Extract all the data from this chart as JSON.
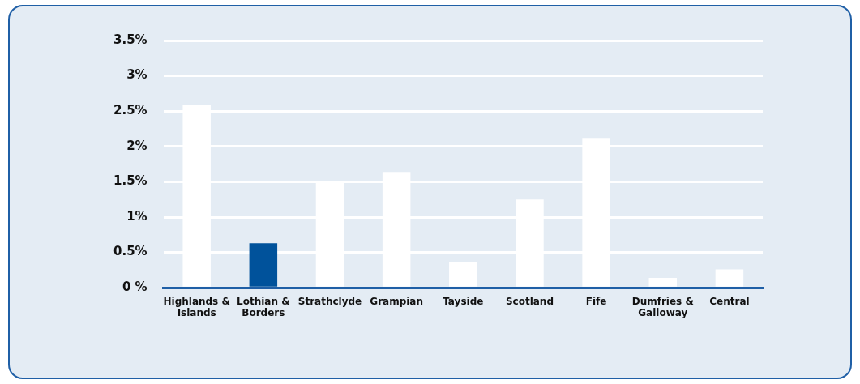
{
  "chart_data": {
    "type": "bar",
    "categories": [
      "Highlands & Islands",
      "Lothian & Borders",
      "Strathclyde",
      "Grampian",
      "Tayside",
      "Scotland",
      "Fife",
      "Dumfries & Galloway",
      "Central"
    ],
    "values": [
      2.59,
      0.63,
      1.5,
      1.64,
      0.37,
      1.25,
      2.12,
      0.14,
      0.26
    ],
    "colors": [
      "#ffffff",
      "#00529b",
      "#ffffff",
      "#ffffff",
      "#ffffff",
      "#ffffff",
      "#ffffff",
      "#ffffff",
      "#ffffff"
    ],
    "ylim": [
      0,
      3.5
    ],
    "yticks": [
      {
        "value": 0,
        "label": "0 %"
      },
      {
        "value": 0.5,
        "label": "0.5%"
      },
      {
        "value": 1,
        "label": "1%"
      },
      {
        "value": 1.5,
        "label": "1.5%"
      },
      {
        "value": 2,
        "label": "2%"
      },
      {
        "value": 2.5,
        "label": "2.5%"
      },
      {
        "value": 3,
        "label": "3%"
      },
      {
        "value": 3.5,
        "label": "3.5%"
      }
    ],
    "grid": "y",
    "legend": false
  }
}
